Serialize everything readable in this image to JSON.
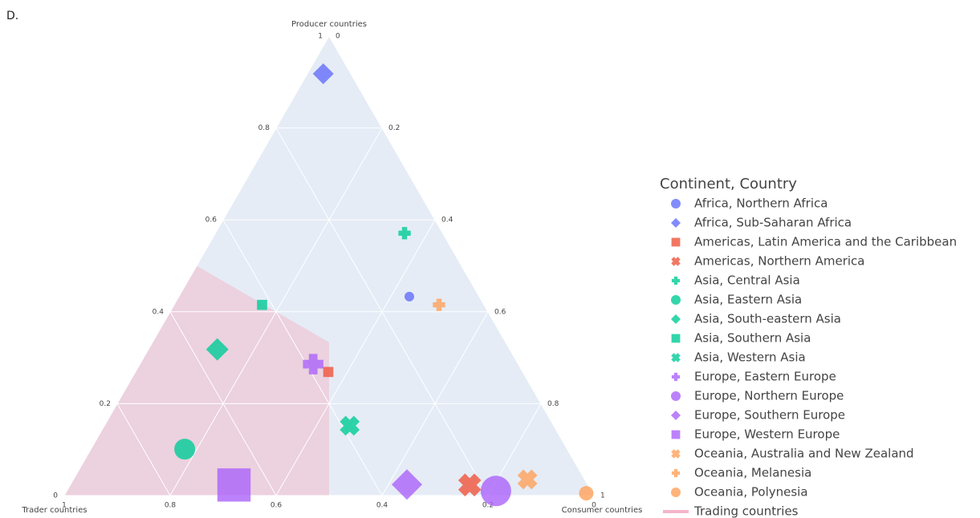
{
  "chart_data": {
    "type": "ternary",
    "panel_label": "D.",
    "aaxis": {
      "title": "Producer countries",
      "ticks": [
        0,
        0.2,
        0.4,
        0.6,
        0.8,
        1
      ]
    },
    "baxis": {
      "title": "Trader countries",
      "ticks": [
        0,
        0.2,
        0.4,
        0.6,
        0.8,
        1
      ]
    },
    "caxis": {
      "title": "Consumer countries",
      "ticks": [
        0,
        0.2,
        0.4,
        0.6,
        0.8,
        1
      ]
    },
    "legend_title": "Continent, Country",
    "series": [
      {
        "name": "Africa, Northern Africa",
        "color": "#636efa",
        "symbol": "circle",
        "size": 12,
        "a": 0.433,
        "b": 0.132,
        "c": 0.435
      },
      {
        "name": "Africa, Sub-Saharan Africa",
        "color": "#636efa",
        "symbol": "diamond",
        "size": 26,
        "a": 0.918,
        "b": 0.052,
        "c": 0.03
      },
      {
        "name": "Americas, Latin America and the Caribbean",
        "color": "#ef553b",
        "symbol": "square",
        "size": 14,
        "a": 0.269,
        "b": 0.367,
        "c": 0.364
      },
      {
        "name": "Americas, Northern America",
        "color": "#ef553b",
        "symbol": "x",
        "size": 30,
        "a": 0.023,
        "b": 0.223,
        "c": 0.754
      },
      {
        "name": "Asia, Central Asia",
        "color": "#00cc96",
        "symbol": "cross",
        "size": 18,
        "a": 0.571,
        "b": 0.072,
        "c": 0.357
      },
      {
        "name": "Asia, Eastern Asia",
        "color": "#00cc96",
        "symbol": "circle",
        "size": 26,
        "a": 0.101,
        "b": 0.722,
        "c": 0.177
      },
      {
        "name": "Asia, South-eastern Asia",
        "color": "#00cc96",
        "symbol": "diamond",
        "size": 28,
        "a": 0.318,
        "b": 0.552,
        "c": 0.13
      },
      {
        "name": "Asia, Southern Asia",
        "color": "#00cc96",
        "symbol": "square",
        "size": 14,
        "a": 0.415,
        "b": 0.419,
        "c": 0.166
      },
      {
        "name": "Asia, Western Asia",
        "color": "#00cc96",
        "symbol": "x",
        "size": 26,
        "a": 0.152,
        "b": 0.385,
        "c": 0.463
      },
      {
        "name": "Europe, Eastern Europe",
        "color": "#ab63fa",
        "symbol": "cross",
        "size": 30,
        "a": 0.286,
        "b": 0.387,
        "c": 0.327
      },
      {
        "name": "Europe, Northern Europe",
        "color": "#ab63fa",
        "symbol": "circle",
        "size": 38,
        "a": 0.01,
        "b": 0.18,
        "c": 0.81
      },
      {
        "name": "Europe, Southern Europe",
        "color": "#ab63fa",
        "symbol": "diamond",
        "size": 38,
        "a": 0.024,
        "b": 0.341,
        "c": 0.635
      },
      {
        "name": "Europe, Western Europe",
        "color": "#ab63fa",
        "symbol": "square",
        "size": 46,
        "a": 0.023,
        "b": 0.668,
        "c": 0.309
      },
      {
        "name": "Oceania, Australia and New Zealand",
        "color": "#ffa15a",
        "symbol": "x",
        "size": 26,
        "a": 0.035,
        "b": 0.108,
        "c": 0.857
      },
      {
        "name": "Oceania, Melanesia",
        "color": "#ffa15a",
        "symbol": "cross",
        "size": 18,
        "a": 0.415,
        "b": 0.085,
        "c": 0.5
      },
      {
        "name": "Oceania, Polynesia",
        "color": "#ffa15a",
        "symbol": "circle",
        "size": 18,
        "a": 0.005,
        "b": 0.012,
        "c": 0.983
      }
    ],
    "region": {
      "name": "Trading countries",
      "color": "#f4b6c8",
      "a": [
        0,
        0.5,
        0.333,
        0
      ],
      "b": [
        1,
        0.5,
        0.333,
        0.5
      ],
      "c": [
        0,
        0,
        0.333,
        0.5
      ]
    }
  }
}
